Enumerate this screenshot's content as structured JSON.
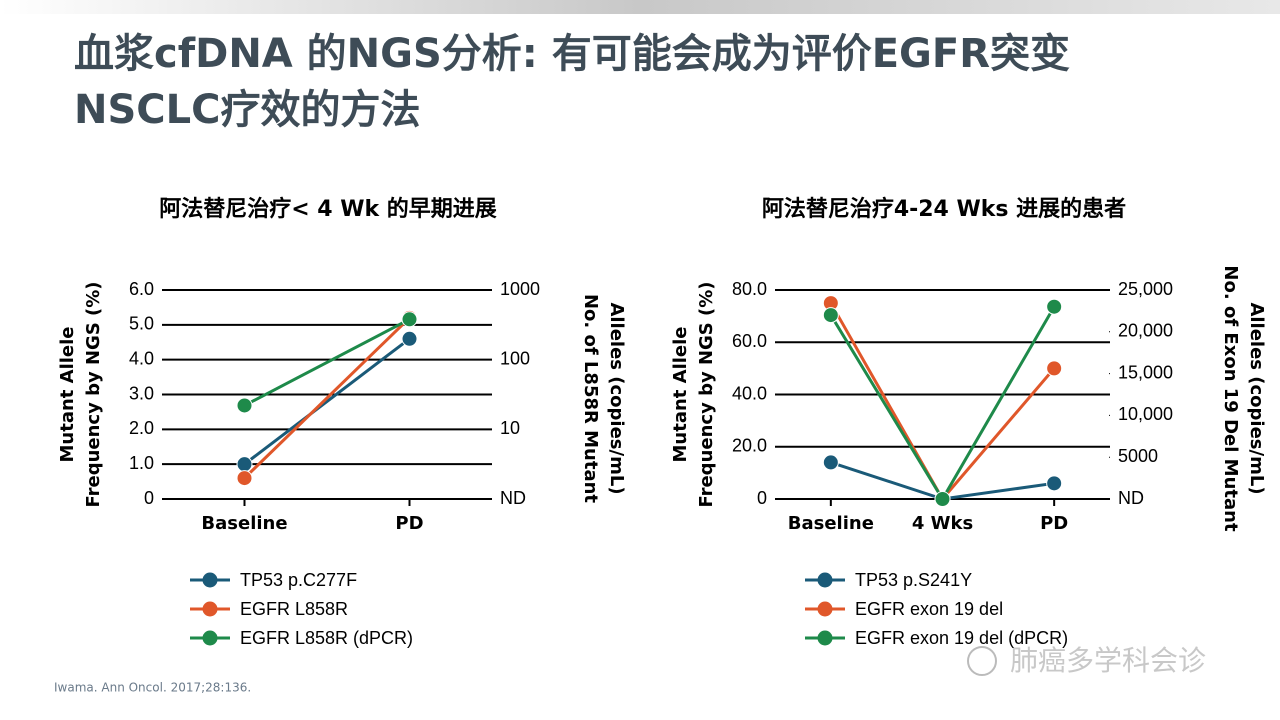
{
  "slide_title": [
    "血浆cfDNA 的NGS分析: 有可能会成为评价EGFR突变",
    "NSCLC疗效的方法"
  ],
  "citation": "Iwama. Ann Oncol. 2017;28:136.",
  "watermark": "肺癌多学科会诊",
  "chart_data": [
    {
      "type": "line",
      "title": "阿法替尼治疗< 4 Wk 的早期进展",
      "categories": [
        "Baseline",
        "PD"
      ],
      "y_label": [
        "Mutant Allele",
        "Frequency by NGS (%)"
      ],
      "y2_label": [
        "No. of L858R Mutant",
        "Alleles (copies/mL)"
      ],
      "ylim": [
        0,
        6
      ],
      "yticks": [
        0,
        {
          "value": 1,
          "label": "1.0"
        },
        {
          "value": 2,
          "label": "2.0"
        },
        {
          "value": 3,
          "label": "3.0"
        },
        {
          "value": 4,
          "label": "4.0"
        },
        {
          "value": 5,
          "label": "5.0"
        },
        {
          "value": 6,
          "label": "6.0"
        }
      ],
      "y2lim": [
        1,
        1000
      ],
      "y2log": true,
      "y2ticks": [
        {
          "value": 1,
          "label": "ND"
        },
        10,
        100,
        1000
      ],
      "grid": true,
      "series": [
        {
          "name": "TP53 p.C277F",
          "color": "#1a5a78",
          "values": [
            1.0,
            4.6
          ]
        },
        {
          "name": "EGFR L858R",
          "color": "#e0572a",
          "values": [
            0.6,
            5.2
          ]
        },
        {
          "name": "EGFR L858R (dPCR)",
          "color": "#1e8a4a",
          "axis": "y2",
          "values": [
            22,
            380
          ]
        }
      ]
    },
    {
      "type": "line",
      "title": "阿法替尼治疗4-24 Wks 进展的患者",
      "categories": [
        "Baseline",
        "4 Wks",
        "PD"
      ],
      "y_label": [
        "Mutant Allele",
        "Frequency by NGS (%)"
      ],
      "y2_label": [
        "No. of Exon 19 Del Mutant",
        "Alleles (copies/mL)"
      ],
      "ylim": [
        0,
        80
      ],
      "yticks": [
        0,
        {
          "value": 20,
          "label": "20.0"
        },
        {
          "value": 40,
          "label": "40.0"
        },
        {
          "value": 60,
          "label": "60.0"
        },
        {
          "value": 80,
          "label": "80.0"
        }
      ],
      "y2lim": [
        0,
        25000
      ],
      "y2ticks": [
        {
          "value": 0,
          "label": "ND"
        },
        5000,
        {
          "value": 10000,
          "label": "10,000"
        },
        {
          "value": 15000,
          "label": "15,000"
        },
        {
          "value": 20000,
          "label": "20,000"
        },
        {
          "value": 25000,
          "label": "25,000"
        }
      ],
      "grid": true,
      "series": [
        {
          "name": "TP53 p.S241Y",
          "color": "#1a5a78",
          "values": [
            14,
            0,
            6
          ]
        },
        {
          "name": "EGFR exon 19 del",
          "color": "#e0572a",
          "values": [
            75,
            0,
            50
          ]
        },
        {
          "name": "EGFR exon 19 del (dPCR)",
          "color": "#1e8a4a",
          "axis": "y2",
          "values": [
            22000,
            0,
            23000
          ]
        }
      ]
    }
  ]
}
